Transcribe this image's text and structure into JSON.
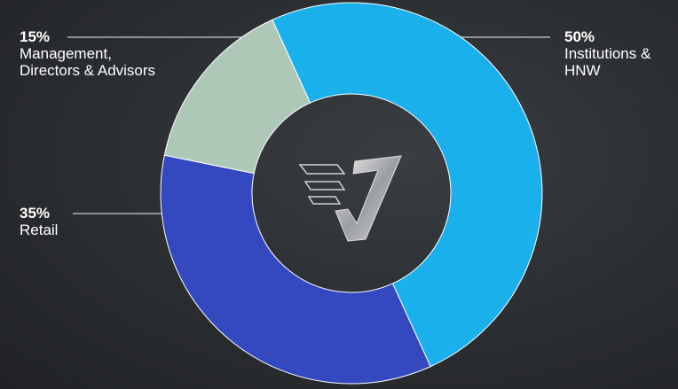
{
  "chart_data": {
    "type": "donut",
    "categories": [
      "Institutions & HNW",
      "Retail",
      "Management, Directors & Advisors"
    ],
    "values": [
      50,
      35,
      15
    ],
    "value_labels": [
      "50%",
      "35%",
      "15%"
    ],
    "colors": [
      "#1ab0ec",
      "#3448c0",
      "#aec8b8"
    ]
  }
}
